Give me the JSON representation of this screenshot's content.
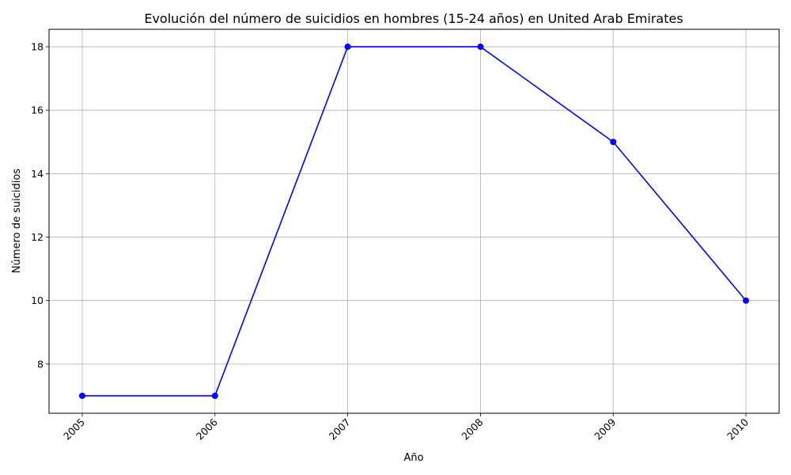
{
  "chart_data": {
    "type": "line",
    "title": "Evolución del número de suicidios en hombres (15-24 años) en United Arab Emirates",
    "xlabel": "Año",
    "ylabel": "Número de suicidios",
    "x": [
      "2005",
      "2006",
      "2007",
      "2008",
      "2009",
      "2010"
    ],
    "y": [
      7,
      7,
      18,
      18,
      15,
      10
    ],
    "yticks": [
      8,
      10,
      12,
      14,
      16,
      18
    ],
    "ylim": [
      6.45,
      18.55
    ],
    "xlim": [
      2004.75,
      2010.25
    ],
    "grid": true,
    "line_color": "#0000ff",
    "marker": "circle",
    "x_tick_rotation_deg": 45
  }
}
